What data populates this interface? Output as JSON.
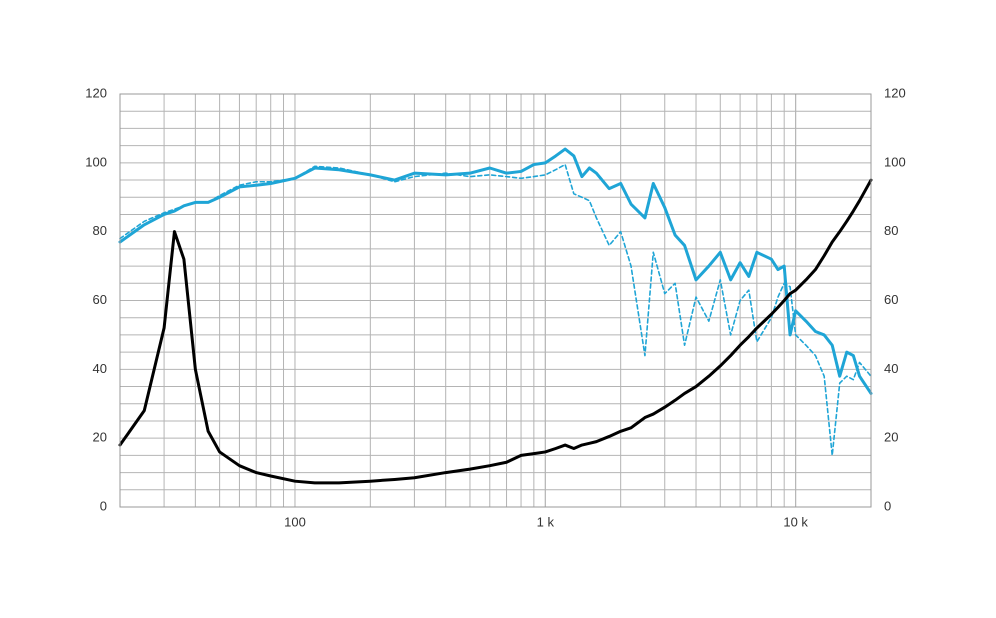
{
  "chart_data": {
    "type": "line",
    "log_x": true,
    "grid": true,
    "minor_grid": true,
    "xlim": [
      20,
      20000
    ],
    "xticks": [
      100,
      {
        "value": 1000,
        "label": "1 k"
      },
      {
        "value": 10000,
        "label": "10 k"
      }
    ],
    "ylim": [
      0,
      120
    ],
    "yticks": [
      0,
      20,
      40,
      60,
      80,
      100,
      120
    ],
    "y2lim": [
      0,
      120
    ],
    "y2ticks": [
      0,
      20,
      40,
      60,
      80,
      100,
      120
    ],
    "x": [
      20,
      25,
      30,
      33,
      36,
      40,
      45,
      50,
      60,
      70,
      80,
      100,
      120,
      150,
      200,
      250,
      300,
      400,
      500,
      600,
      700,
      800,
      900,
      1000,
      1100,
      1200,
      1300,
      1400,
      1500,
      1600,
      1800,
      2000,
      2200,
      2500,
      2700,
      3000,
      3300,
      3600,
      4000,
      4500,
      5000,
      5500,
      6000,
      6500,
      7000,
      8000,
      8500,
      9000,
      9500,
      10000,
      11000,
      12000,
      13000,
      14000,
      15000,
      16000,
      17000,
      18000,
      20000
    ],
    "series": [
      {
        "color": "#1fa5d6",
        "style": "solid",
        "width": 3,
        "values": [
          77,
          82,
          85,
          86,
          87.5,
          88.5,
          88.5,
          90,
          93,
          93.5,
          94,
          95.5,
          98.5,
          98,
          96.5,
          95,
          97,
          96.5,
          97,
          98.5,
          97,
          97.5,
          99.5,
          100,
          102,
          104,
          102,
          96,
          98.5,
          97,
          92.5,
          94,
          88,
          84,
          94,
          87,
          79,
          76,
          66,
          70,
          74,
          66,
          71,
          67,
          74,
          72,
          69,
          70,
          50,
          57,
          54,
          51,
          50,
          47,
          38,
          45,
          44,
          38,
          33
        ]
      },
      {
        "color": "#1fa5d6",
        "style": "dashed",
        "width": 1.6,
        "values": [
          78,
          83,
          85.5,
          86.5,
          87.5,
          88.5,
          88.5,
          90.5,
          93.5,
          94.5,
          94.5,
          95.5,
          99,
          98.5,
          96.5,
          94.5,
          96,
          97,
          96,
          96.5,
          96,
          95.5,
          96,
          96.5,
          98,
          99.5,
          91,
          90,
          89,
          84,
          76,
          80,
          70,
          44,
          74,
          62,
          65,
          47,
          61,
          54,
          66,
          50,
          60,
          63,
          48,
          55,
          61,
          65,
          64,
          50,
          47,
          44,
          38,
          15,
          36,
          38,
          37,
          42,
          38
        ]
      },
      {
        "color": "#000000",
        "style": "solid",
        "width": 3,
        "axis": "y2",
        "values": [
          18,
          28,
          52,
          80,
          72,
          40,
          22,
          16,
          12,
          10,
          9,
          7.5,
          7,
          7,
          7.5,
          8,
          8.5,
          10,
          11,
          12,
          13,
          15,
          15.5,
          16,
          17,
          18,
          17,
          18,
          18.5,
          19,
          20.5,
          22,
          23,
          26,
          27,
          29,
          31,
          33,
          35,
          38,
          41,
          44,
          47,
          49.5,
          52,
          56,
          58,
          60,
          62,
          63,
          66,
          69,
          73,
          77,
          80,
          83,
          86,
          89,
          95
        ]
      }
    ]
  }
}
